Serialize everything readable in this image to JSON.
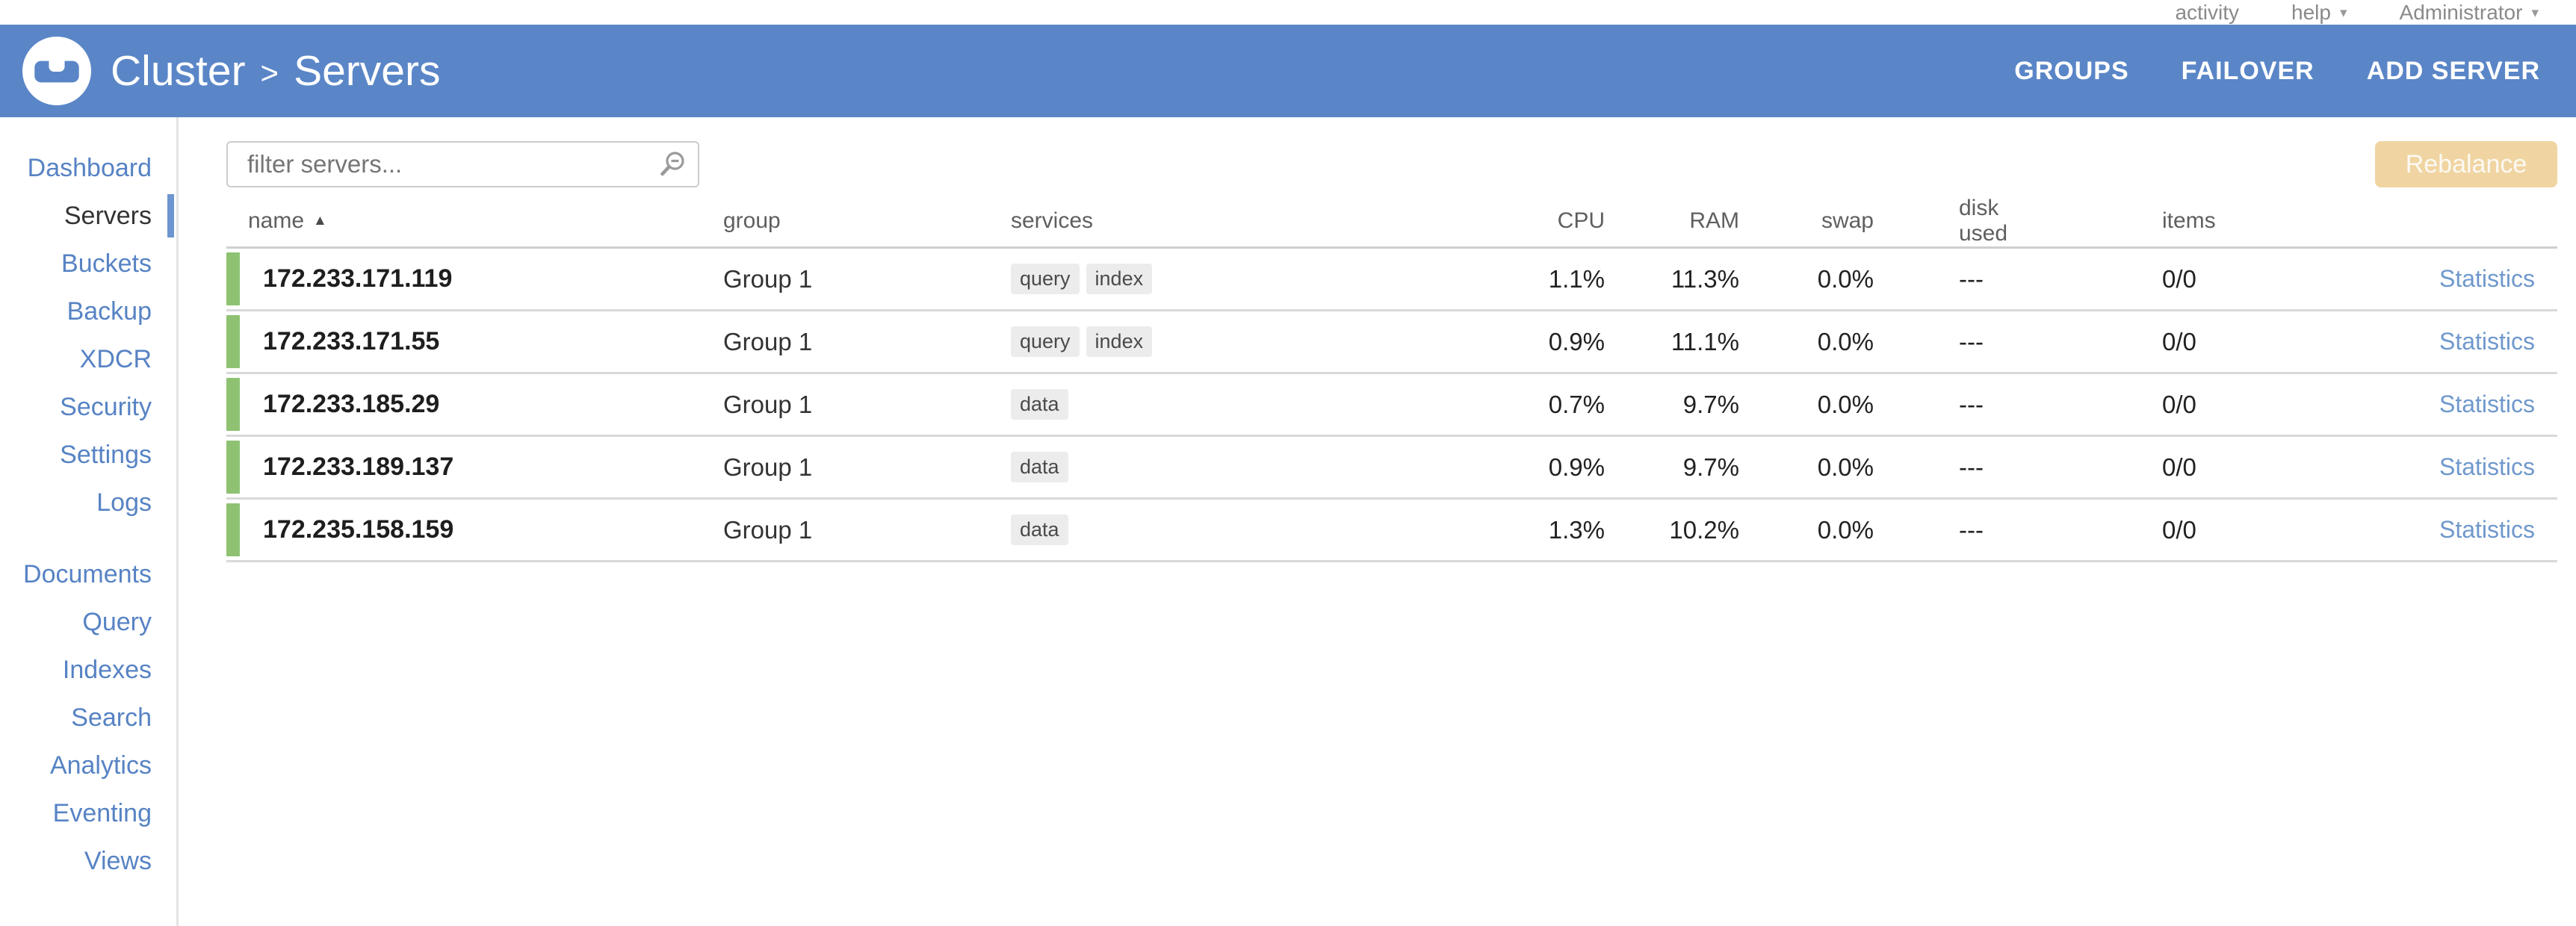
{
  "topbar": {
    "activity_label": "activity",
    "help_label": "help",
    "user_label": "Administrator",
    "caret": "▾"
  },
  "header": {
    "breadcrumb": {
      "cluster": "Cluster",
      "separator": ">",
      "section": "Servers"
    },
    "actions": [
      {
        "label": "GROUPS"
      },
      {
        "label": "FAILOVER"
      },
      {
        "label": "ADD SERVER"
      }
    ]
  },
  "sidebar": {
    "primary": [
      {
        "label": "Dashboard"
      },
      {
        "label": "Servers",
        "active": true
      },
      {
        "label": "Buckets"
      },
      {
        "label": "Backup"
      },
      {
        "label": "XDCR"
      },
      {
        "label": "Security"
      },
      {
        "label": "Settings"
      },
      {
        "label": "Logs"
      }
    ],
    "secondary": [
      {
        "label": "Documents"
      },
      {
        "label": "Query"
      },
      {
        "label": "Indexes"
      },
      {
        "label": "Search"
      },
      {
        "label": "Analytics"
      },
      {
        "label": "Eventing"
      },
      {
        "label": "Views"
      }
    ]
  },
  "toolbar": {
    "filter_placeholder": "filter servers...",
    "rebalance_label": "Rebalance"
  },
  "table": {
    "columns": [
      "name",
      "group",
      "services",
      "CPU",
      "RAM",
      "swap",
      "disk used",
      "items"
    ],
    "sort_icon": "▲",
    "rows": [
      {
        "name": "172.233.171.119",
        "group": "Group 1",
        "services": [
          "query",
          "index"
        ],
        "cpu": "1.1%",
        "ram": "11.3%",
        "swap": "0.0%",
        "disk_used": "---",
        "items": "0/0",
        "statistics_label": "Statistics"
      },
      {
        "name": "172.233.171.55",
        "group": "Group 1",
        "services": [
          "query",
          "index"
        ],
        "cpu": "0.9%",
        "ram": "11.1%",
        "swap": "0.0%",
        "disk_used": "---",
        "items": "0/0",
        "statistics_label": "Statistics"
      },
      {
        "name": "172.233.185.29",
        "group": "Group 1",
        "services": [
          "data"
        ],
        "cpu": "0.7%",
        "ram": "9.7%",
        "swap": "0.0%",
        "disk_used": "---",
        "items": "0/0",
        "statistics_label": "Statistics"
      },
      {
        "name": "172.233.189.137",
        "group": "Group 1",
        "services": [
          "data"
        ],
        "cpu": "0.9%",
        "ram": "9.7%",
        "swap": "0.0%",
        "disk_used": "---",
        "items": "0/0",
        "statistics_label": "Statistics"
      },
      {
        "name": "172.235.158.159",
        "group": "Group 1",
        "services": [
          "data"
        ],
        "cpu": "1.3%",
        "ram": "10.2%",
        "swap": "0.0%",
        "disk_used": "---",
        "items": "0/0",
        "statistics_label": "Statistics"
      }
    ]
  },
  "colors": {
    "header_blue": "#5a86c7",
    "sidebar_link_blue": "#5783c4",
    "healthy_green": "#8ec272",
    "rebalance_tan": "#f0d5a2",
    "statistics_link": "#6f98cc"
  }
}
